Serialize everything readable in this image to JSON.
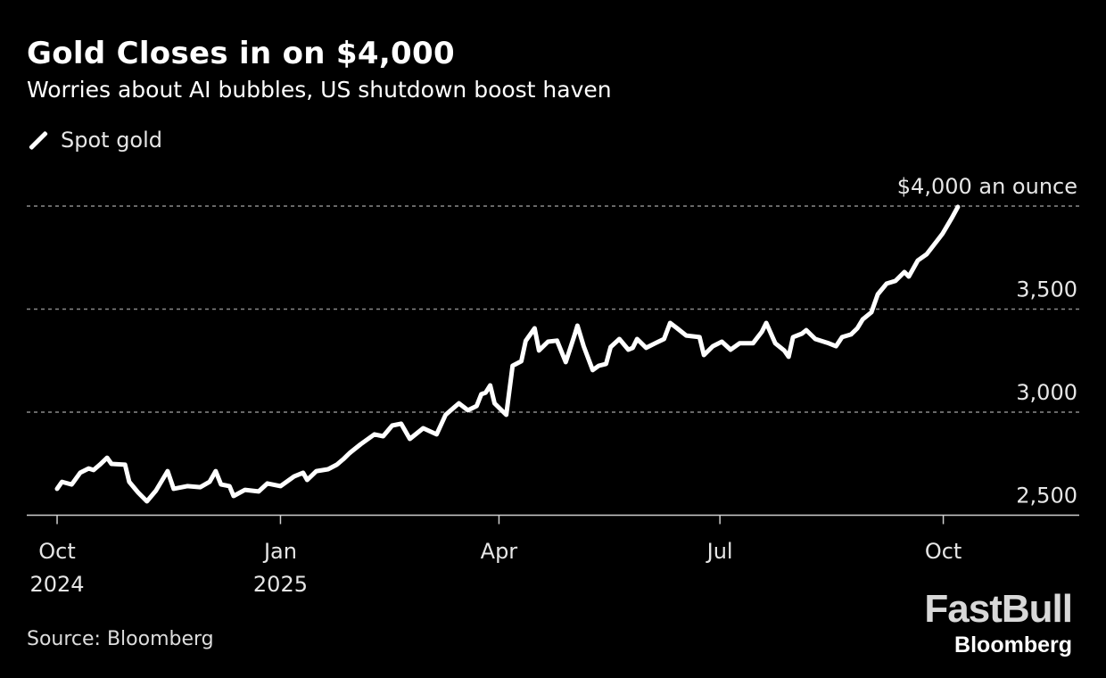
{
  "chart_data": {
    "type": "line",
    "title": "Gold Closes in on $4,000",
    "subtitle": "Worries about AI bubbles, US shutdown boost haven",
    "legend": [
      "Spot gold"
    ],
    "legend_placement": "top-left",
    "xlabel": "",
    "ylabel": "",
    "x_unit": "days since 2024-10-01",
    "xlim": [
      -12.5,
      421
    ],
    "ylim": [
      2500,
      4000
    ],
    "grid": true,
    "y_ticks": [
      {
        "value": 2500,
        "label": "2,500"
      },
      {
        "value": 3000,
        "label": "3,000"
      },
      {
        "value": 3500,
        "label": "3,500"
      },
      {
        "value": 4000,
        "label": "$4,000 an ounce"
      }
    ],
    "x_ticks": [
      {
        "value": 0,
        "label": "Oct",
        "sublabel": "2024"
      },
      {
        "value": 92,
        "label": "Jan",
        "sublabel": "2025"
      },
      {
        "value": 182,
        "label": "Apr",
        "sublabel": ""
      },
      {
        "value": 273,
        "label": "Jul",
        "sublabel": ""
      },
      {
        "value": 365,
        "label": "Oct",
        "sublabel": ""
      }
    ],
    "series": [
      {
        "name": "Spot gold",
        "color": "#ffffff",
        "x": [
          0,
          2,
          6,
          9.5,
          13,
          15,
          17.6,
          20.6,
          22.4,
          28,
          29.7,
          33.4,
          37,
          40.7,
          45.5,
          48,
          53.6,
          59,
          62.8,
          65.3,
          67.5,
          71,
          72.7,
          77.4,
          83,
          86.6,
          92,
          97.6,
          101.3,
          103,
          106.8,
          111.6,
          115.2,
          117.8,
          120.4,
          125,
          130.7,
          134.3,
          138,
          141.7,
          145.3,
          150.8,
          156.3,
          160,
          165.5,
          169.2,
          172.8,
          174.7,
          176.5,
          178.4,
          180.2,
          185,
          187.6,
          191.2,
          193,
          196.7,
          198.5,
          202.2,
          205.9,
          209.5,
          213.2,
          214.3,
          216.9,
          220.6,
          223.1,
          226.1,
          228,
          231.6,
          235.3,
          237.1,
          238.9,
          242.6,
          246.3,
          250,
          252.5,
          255.4,
          259.1,
          264.6,
          266.4,
          270.1,
          273.8,
          277.4,
          281.1,
          286.6,
          290.3,
          292.1,
          295.8,
          299.5,
          301.3,
          303.1,
          306.8,
          308.6,
          312.3,
          317.8,
          320.8,
          323.3,
          327,
          329.6,
          331.8,
          335.4,
          338,
          341.7,
          345.3,
          349,
          350.8,
          354.5,
          358.1,
          361.8,
          364.7,
          368.4,
          371
        ],
        "values": [
          2628,
          2662,
          2649,
          2706,
          2727,
          2719,
          2745,
          2779,
          2749,
          2745,
          2662,
          2610,
          2567,
          2619,
          2714,
          2628,
          2641,
          2636,
          2662,
          2714,
          2649,
          2641,
          2593,
          2623,
          2615,
          2654,
          2641,
          2688,
          2706,
          2671,
          2714,
          2723,
          2745,
          2771,
          2801,
          2844,
          2892,
          2883,
          2935,
          2944,
          2870,
          2922,
          2892,
          2987,
          3043,
          3009,
          3030,
          3087,
          3095,
          3130,
          3043,
          2987,
          3225,
          3247,
          3346,
          3407,
          3299,
          3342,
          3347,
          3243,
          3377,
          3420,
          3320,
          3204,
          3225,
          3234,
          3316,
          3355,
          3303,
          3312,
          3355,
          3312,
          3334,
          3355,
          3433,
          3407,
          3372,
          3364,
          3277,
          3320,
          3342,
          3303,
          3334,
          3334,
          3390,
          3433,
          3334,
          3299,
          3269,
          3364,
          3381,
          3398,
          3355,
          3334,
          3320,
          3364,
          3377,
          3407,
          3450,
          3485,
          3572,
          3624,
          3637,
          3680,
          3658,
          3736,
          3766,
          3822,
          3866,
          3940,
          3996
        ]
      }
    ]
  },
  "source": "Source: Bloomberg",
  "logo": {
    "brand": "FastBull",
    "sub": "Bloomberg"
  }
}
